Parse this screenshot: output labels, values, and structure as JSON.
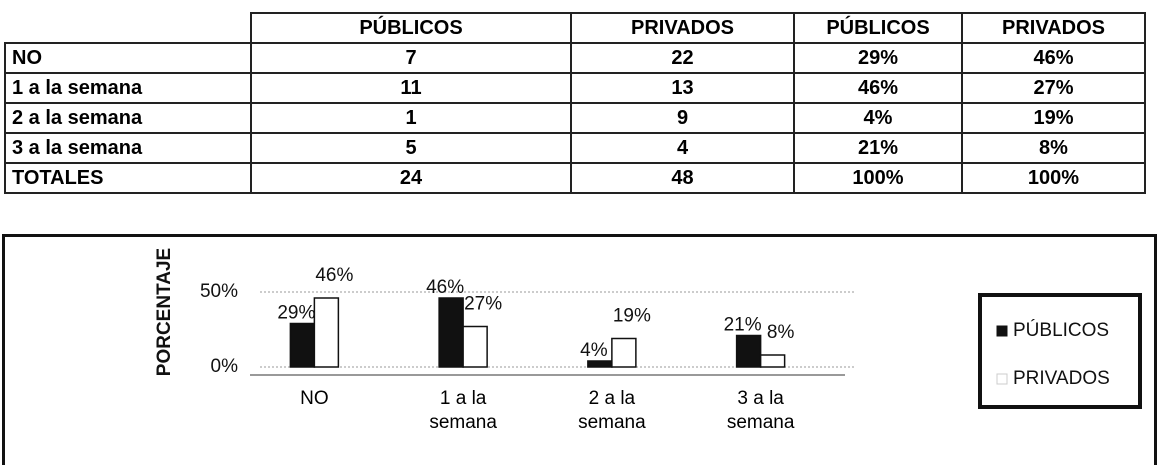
{
  "table": {
    "header": [
      "PÚBLICOS",
      "PRIVADOS",
      "PÚBLICOS",
      "PRIVADOS"
    ],
    "rows": [
      [
        "NO",
        7,
        22,
        "29%",
        "46%"
      ],
      [
        "1 a la semana",
        11,
        13,
        "46%",
        "27%"
      ],
      [
        "2 a la semana",
        1,
        9,
        "4%",
        "19%"
      ],
      [
        "3 a la semana",
        5,
        4,
        "21%",
        "8%"
      ],
      [
        "TOTALES",
        24,
        48,
        "100%",
        "100%"
      ]
    ]
  },
  "chart_data": {
    "type": "bar",
    "y_label": "PORCENTAJE",
    "categories": [
      "NO",
      "1 a la semana",
      "2 a la semana",
      "3 a la semana"
    ],
    "series": [
      {
        "name": "PÚBLICOS",
        "color": "#111111",
        "values": [
          29,
          46,
          4,
          21
        ],
        "value_labels": [
          "29%",
          "46%",
          "4%",
          "21%"
        ]
      },
      {
        "name": "PRIVADOS",
        "color": "#ffffff",
        "values": [
          46,
          27,
          19,
          8
        ],
        "value_labels": [
          "46%",
          "27%",
          "19%",
          "8%"
        ]
      }
    ],
    "ylim": [
      0,
      60
    ],
    "yticks": [
      {
        "value": 0,
        "label": "0%"
      },
      {
        "value": 50,
        "label": "50%"
      }
    ],
    "grid": true,
    "legend": "right"
  }
}
